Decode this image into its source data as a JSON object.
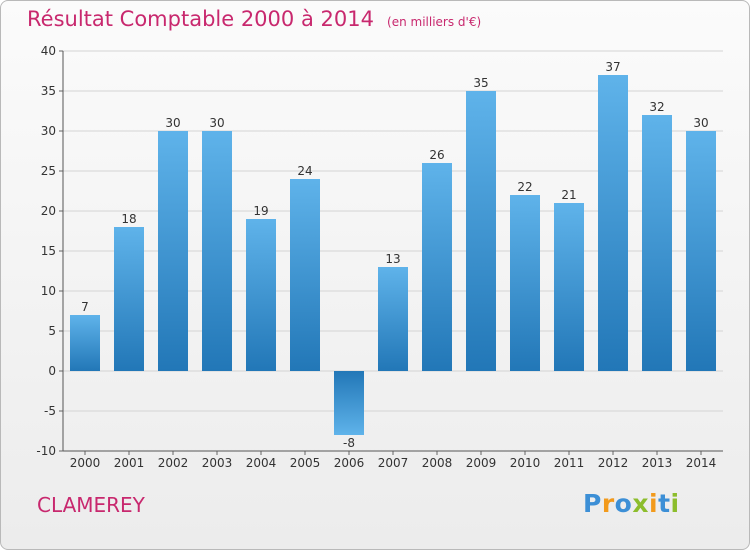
{
  "title": "Résultat Comptable 2000 à 2014",
  "subtitle": "(en milliers d'€)",
  "commune": "CLAMEREY",
  "logo": {
    "text": "Proxiti",
    "letters": [
      {
        "ch": "P",
        "color": "#3c8fd6"
      },
      {
        "ch": "r",
        "color": "#f29a1c"
      },
      {
        "ch": "o",
        "color": "#3c8fd6"
      },
      {
        "ch": "x",
        "color": "#8cbd2c"
      },
      {
        "ch": "i",
        "color": "#f29a1c"
      },
      {
        "ch": "t",
        "color": "#3c8fd6"
      },
      {
        "ch": "i",
        "color": "#8cbd2c"
      }
    ]
  },
  "colors": {
    "bar_light": "#5fb3ea",
    "bar_dark": "#2277b7",
    "accent": "#c8286e",
    "grid": "#d4d4d4"
  },
  "chart_data": {
    "type": "bar",
    "title": "Résultat Comptable 2000 à 2014",
    "subtitle": "(en milliers d'€)",
    "categories": [
      "2000",
      "2001",
      "2002",
      "2003",
      "2004",
      "2005",
      "2006",
      "2007",
      "2008",
      "2009",
      "2010",
      "2011",
      "2012",
      "2013",
      "2014"
    ],
    "values": [
      7,
      18,
      30,
      30,
      19,
      24,
      -8,
      13,
      26,
      35,
      22,
      21,
      37,
      32,
      30
    ],
    "data_labels": [
      "7",
      "18",
      "30",
      "30",
      "19",
      "24",
      "-8",
      "13",
      "26",
      "35",
      "22",
      "21",
      "37",
      "32",
      "30"
    ],
    "ylim": [
      -10,
      40
    ],
    "yticks": [
      -10,
      -5,
      0,
      5,
      10,
      15,
      20,
      25,
      30,
      35,
      40
    ],
    "ytick_labels": [
      "-10",
      "-5",
      "0",
      "5",
      "10",
      "15",
      "20",
      "25",
      "30",
      "35",
      "40"
    ],
    "grid": true,
    "legend": "none"
  }
}
